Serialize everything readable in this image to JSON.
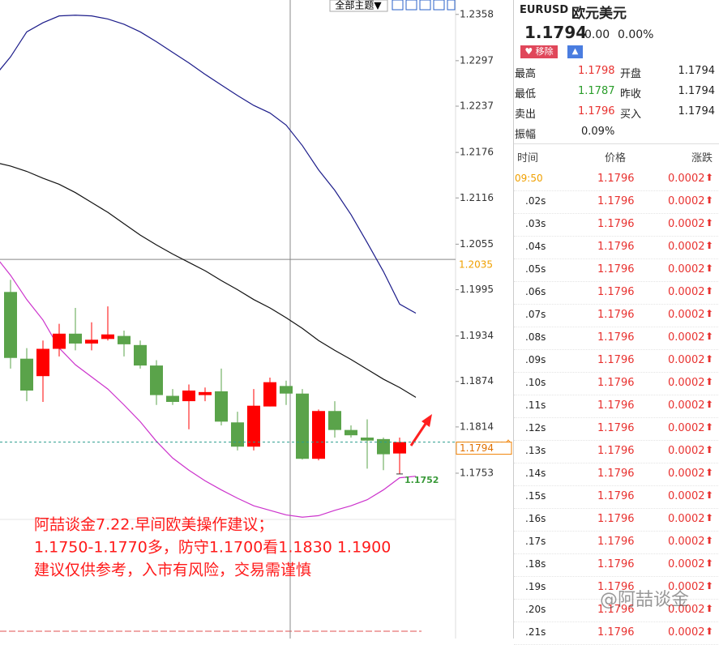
{
  "toolbar": {
    "theme_menu": "全部主题▼"
  },
  "chart_data": {
    "type": "candlestick",
    "categories": [
      null,
      null,
      null,
      null,
      null,
      null,
      null,
      null,
      null,
      null,
      null,
      null,
      null,
      null,
      null,
      null,
      null,
      null,
      null,
      null,
      null,
      null,
      null,
      null,
      null,
      null,
      null
    ],
    "open": [
      null,
      1.1992,
      1.1904,
      1.1881,
      1.1917,
      1.1937,
      1.1924,
      1.193,
      1.1934,
      1.1922,
      1.1895,
      1.1855,
      1.1848,
      1.1856,
      1.1861,
      1.182,
      1.1788,
      1.1841,
      1.1868,
      1.1858,
      1.1772,
      1.1835,
      1.181,
      1.18,
      1.1798,
      1.1779,
      null
    ],
    "high": [
      null,
      1.2008,
      1.1918,
      1.1928,
      1.195,
      1.1971,
      1.1952,
      1.1973,
      1.1941,
      1.1928,
      1.1902,
      1.1864,
      1.187,
      1.1866,
      1.1891,
      1.1834,
      1.1864,
      1.1879,
      1.1875,
      1.1864,
      1.1837,
      1.1848,
      1.1816,
      1.1824,
      1.18,
      1.18,
      null
    ],
    "low": [
      null,
      1.1891,
      1.1848,
      1.1847,
      1.1907,
      1.1915,
      1.1915,
      1.1928,
      1.1907,
      1.1891,
      1.1843,
      1.1843,
      1.1811,
      1.1848,
      1.1816,
      1.1783,
      1.1783,
      1.1841,
      1.1843,
      1.1771,
      1.177,
      1.18,
      1.18,
      1.1759,
      1.1757,
      1.1752,
      null
    ],
    "close": [
      null,
      1.1905,
      1.1862,
      1.1917,
      1.1937,
      1.1924,
      1.1929,
      1.1936,
      1.1923,
      1.1895,
      1.1856,
      1.1847,
      1.1862,
      1.186,
      1.1821,
      1.1788,
      1.1842,
      1.1873,
      1.1858,
      1.1772,
      1.1835,
      1.181,
      1.1803,
      1.1796,
      1.1778,
      1.1794,
      null
    ],
    "color_up": "#ff0000",
    "color_down": "#5aa34a",
    "overlays": [
      {
        "color": "#1c1c8a",
        "values": [
          1.2276,
          1.2302,
          1.2335,
          1.2347,
          1.2356,
          1.2357,
          1.2356,
          1.2352,
          1.2345,
          1.2335,
          1.2322,
          1.2308,
          1.2294,
          1.2279,
          1.2265,
          1.2251,
          1.2238,
          1.2228,
          1.2212,
          1.2185,
          1.2153,
          1.2126,
          1.2094,
          1.2057,
          1.2019,
          1.1976,
          1.1964
        ]
      },
      {
        "color": "#111111",
        "values": [
          1.2163,
          1.2158,
          1.2151,
          1.2142,
          1.2134,
          1.2123,
          1.211,
          1.2097,
          1.2082,
          1.2067,
          1.2054,
          1.2042,
          1.2031,
          1.202,
          1.2007,
          1.1995,
          1.1982,
          1.1971,
          1.1958,
          1.1944,
          1.1928,
          1.1915,
          1.1903,
          1.189,
          1.1877,
          1.1866,
          1.1853
        ]
      },
      {
        "color": "#cc33cc",
        "values": [
          1.2041,
          1.2014,
          1.1982,
          1.1955,
          1.1918,
          1.1896,
          1.188,
          1.1864,
          1.1843,
          1.1821,
          1.1795,
          1.1773,
          1.1757,
          1.1743,
          1.1731,
          1.172,
          1.171,
          1.1704,
          1.1698,
          1.1695,
          1.1697,
          1.1704,
          1.171,
          1.1718,
          1.1731,
          1.1747,
          1.1749
        ]
      }
    ],
    "ylim": [
      1.1535,
      1.2377
    ],
    "yticks": [
      1.2358,
      1.2297,
      1.2237,
      1.2176,
      1.2116,
      1.2055,
      1.1995,
      1.1934,
      1.1874,
      1.1814,
      1.1753
    ],
    "crosshair_price": 1.2035,
    "last_price": 1.1794,
    "low_label": 1.1752,
    "annotation": [
      "阿喆谈金7.22.早间欧美操作建议；",
      "1.1750-1.1770多，防守1.1700看1.1830  1.1900",
      "建议仅供参考，入市有风险，交易需谨慎"
    ]
  },
  "quote": {
    "symbol": "EURUSD",
    "name": "欧元美元",
    "price": "1.1794",
    "change": "0.00",
    "change_pct": "0.00%",
    "remove_button": "移除",
    "stats": [
      [
        "最高",
        "1.1798",
        "开盘",
        "1.1794"
      ],
      [
        "最低",
        "1.1787",
        "昨收",
        "1.1794"
      ],
      [
        "卖出",
        "1.1796",
        "买入",
        "1.1794"
      ],
      [
        "振幅",
        "0.09%"
      ]
    ]
  },
  "ticks": {
    "headers": [
      "时间",
      "价格",
      "涨跌"
    ],
    "rows": [
      [
        "09:50",
        "1.1796",
        "0.0002"
      ],
      [
        ".02s",
        "1.1796",
        "0.0002"
      ],
      [
        ".03s",
        "1.1796",
        "0.0002"
      ],
      [
        ".04s",
        "1.1796",
        "0.0002"
      ],
      [
        ".05s",
        "1.1796",
        "0.0002"
      ],
      [
        ".06s",
        "1.1796",
        "0.0002"
      ],
      [
        ".07s",
        "1.1796",
        "0.0002"
      ],
      [
        ".08s",
        "1.1796",
        "0.0002"
      ],
      [
        ".09s",
        "1.1796",
        "0.0002"
      ],
      [
        ".10s",
        "1.1796",
        "0.0002"
      ],
      [
        ".11s",
        "1.1796",
        "0.0002"
      ],
      [
        ".12s",
        "1.1796",
        "0.0002"
      ],
      [
        ".13s",
        "1.1796",
        "0.0002"
      ],
      [
        ".14s",
        "1.1796",
        "0.0002"
      ],
      [
        ".15s",
        "1.1796",
        "0.0002"
      ],
      [
        ".16s",
        "1.1796",
        "0.0002"
      ],
      [
        ".17s",
        "1.1796",
        "0.0002"
      ],
      [
        ".18s",
        "1.1796",
        "0.0002"
      ],
      [
        ".19s",
        "1.1796",
        "0.0002"
      ],
      [
        ".20s",
        "1.1796",
        "0.0002"
      ],
      [
        ".21s",
        "1.1796",
        "0.0002"
      ]
    ]
  },
  "watermark": "@阿喆谈金"
}
